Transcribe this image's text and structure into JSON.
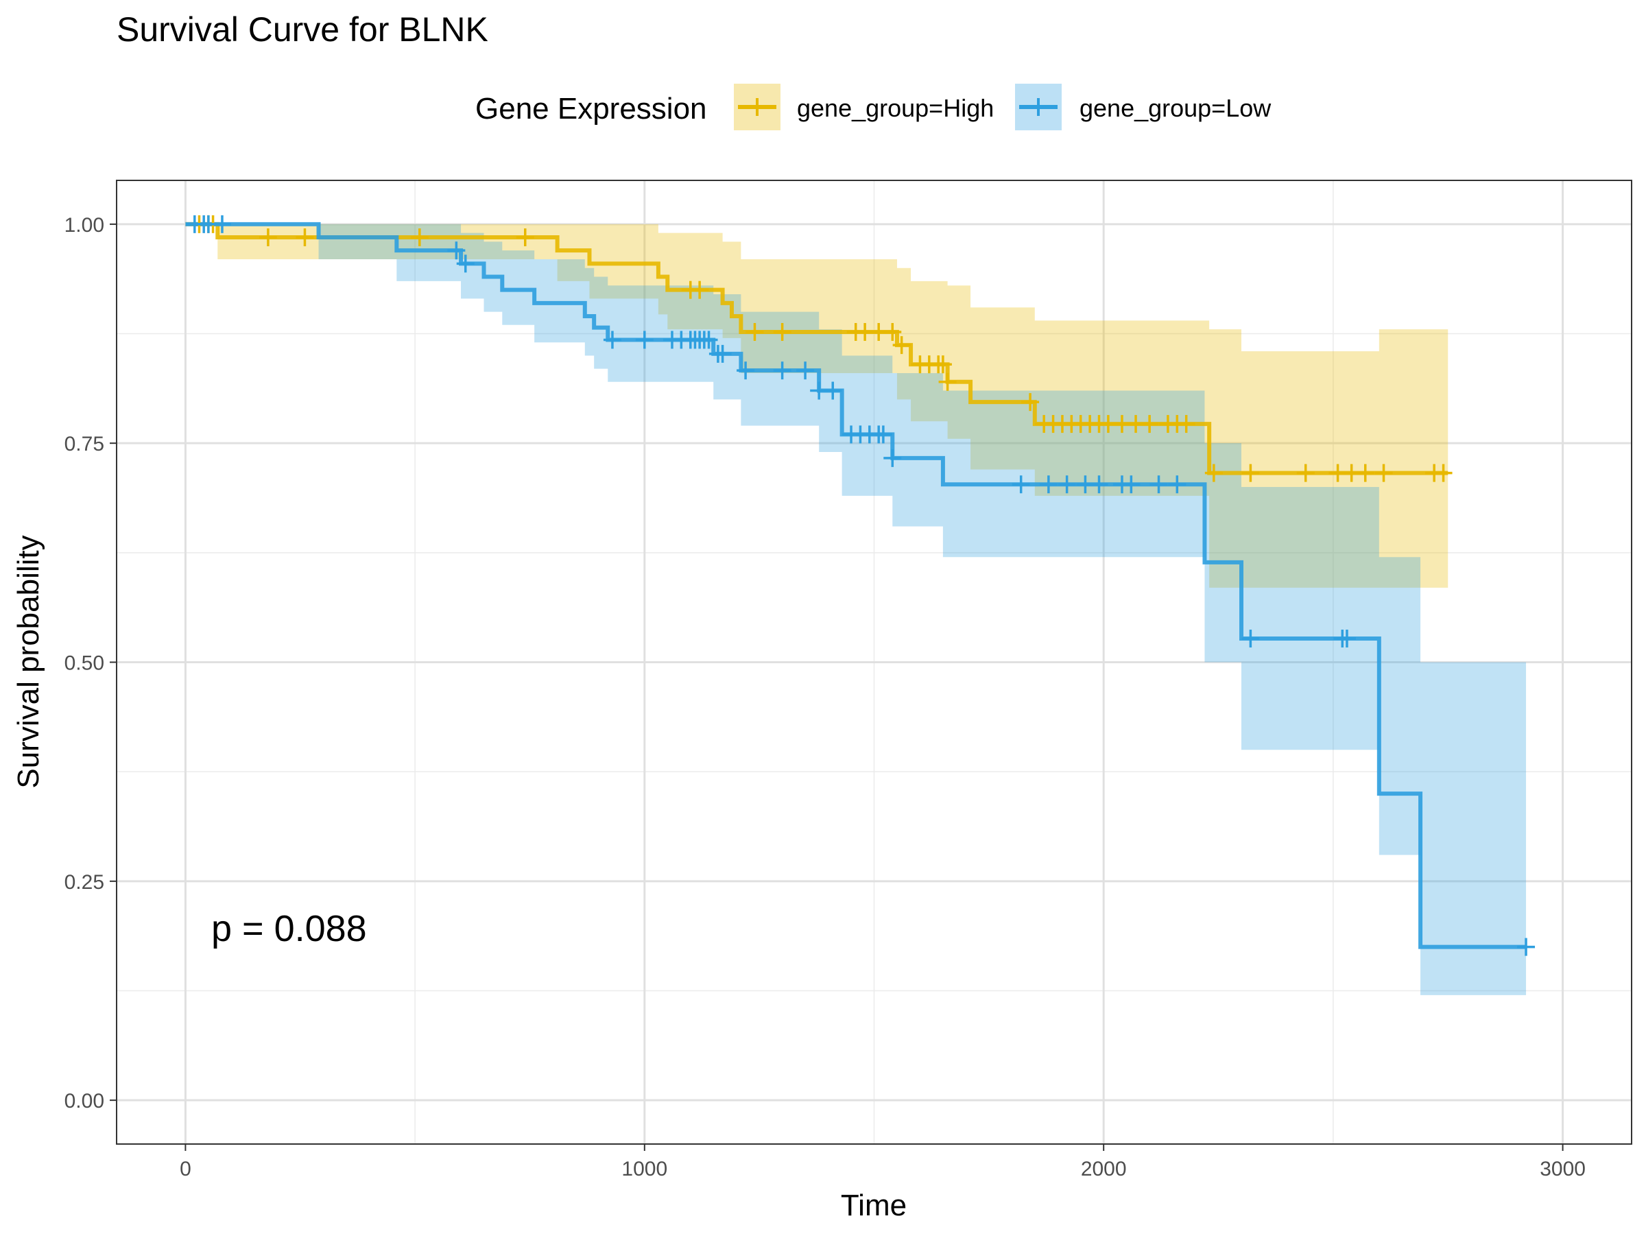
{
  "chart_data": {
    "type": "line",
    "title": "Survival Curve for BLNK",
    "xlabel": "Time",
    "ylabel": "Survival probability",
    "xlim": [
      -150,
      3150
    ],
    "ylim": [
      -0.05,
      1.05
    ],
    "x_ticks": [
      0,
      1000,
      2000,
      3000
    ],
    "x_tick_labels": [
      "0",
      "1000",
      "2000",
      "3000"
    ],
    "y_ticks": [
      0,
      0.25,
      0.5,
      0.75,
      1.0
    ],
    "y_tick_labels": [
      "0.00",
      "0.25",
      "0.50",
      "0.75",
      "1.00"
    ],
    "grid": true,
    "legend": {
      "title": "Gene Expression",
      "position": "top"
    },
    "annotation": "p = 0.088",
    "series": [
      {
        "name": "gene_group=High",
        "color": "#E7B800",
        "steps": [
          [
            0,
            1.0
          ],
          [
            70,
            0.985
          ],
          [
            810,
            0.97
          ],
          [
            880,
            0.955
          ],
          [
            1030,
            0.94
          ],
          [
            1050,
            0.925
          ],
          [
            1170,
            0.91
          ],
          [
            1190,
            0.895
          ],
          [
            1210,
            0.877
          ],
          [
            1550,
            0.862
          ],
          [
            1580,
            0.84
          ],
          [
            1660,
            0.82
          ],
          [
            1710,
            0.797
          ],
          [
            1850,
            0.772
          ],
          [
            2230,
            0.716
          ],
          [
            2750,
            0.716
          ]
        ],
        "ci_steps": [
          [
            0,
            1.0,
            1.0
          ],
          [
            70,
            1.0,
            0.96
          ],
          [
            290,
            1.0,
            0.96
          ],
          [
            810,
            1.0,
            0.935
          ],
          [
            880,
            1.0,
            0.915
          ],
          [
            1030,
            0.99,
            0.897
          ],
          [
            1050,
            0.99,
            0.88
          ],
          [
            1170,
            0.98,
            0.87
          ],
          [
            1210,
            0.96,
            0.83
          ],
          [
            1550,
            0.95,
            0.8
          ],
          [
            1580,
            0.935,
            0.775
          ],
          [
            1660,
            0.93,
            0.755
          ],
          [
            1710,
            0.905,
            0.72
          ],
          [
            1850,
            0.89,
            0.69
          ],
          [
            2230,
            0.88,
            0.585
          ],
          [
            2300,
            0.855,
            0.585
          ],
          [
            2600,
            0.88,
            0.585
          ],
          [
            2750,
            0.88,
            0.585
          ]
        ],
        "censor_times": [
          30,
          50,
          60,
          180,
          260,
          510,
          740,
          1100,
          1120,
          1240,
          1300,
          1460,
          1480,
          1510,
          1540,
          1560,
          1600,
          1620,
          1640,
          1650,
          1660,
          1840,
          1870,
          1890,
          1910,
          1930,
          1950,
          1970,
          1990,
          2010,
          2040,
          2070,
          2100,
          2140,
          2160,
          2180,
          2240,
          2320,
          2440,
          2510,
          2540,
          2570,
          2610,
          2720,
          2740
        ]
      },
      {
        "name": "gene_group=Low",
        "color": "#2E9FDF",
        "steps": [
          [
            0,
            1.0
          ],
          [
            290,
            0.985
          ],
          [
            460,
            0.97
          ],
          [
            600,
            0.955
          ],
          [
            650,
            0.94
          ],
          [
            690,
            0.925
          ],
          [
            760,
            0.91
          ],
          [
            870,
            0.895
          ],
          [
            890,
            0.882
          ],
          [
            920,
            0.868
          ],
          [
            1150,
            0.852
          ],
          [
            1210,
            0.833
          ],
          [
            1380,
            0.81
          ],
          [
            1430,
            0.76
          ],
          [
            1540,
            0.733
          ],
          [
            1650,
            0.703
          ],
          [
            2220,
            0.614
          ],
          [
            2300,
            0.527
          ],
          [
            2600,
            0.35
          ],
          [
            2690,
            0.175
          ],
          [
            2920,
            0.175
          ]
        ],
        "ci_steps": [
          [
            0,
            1.0,
            1.0
          ],
          [
            290,
            1.0,
            0.96
          ],
          [
            460,
            1.0,
            0.935
          ],
          [
            600,
            0.99,
            0.915
          ],
          [
            650,
            0.98,
            0.9
          ],
          [
            690,
            0.97,
            0.885
          ],
          [
            760,
            0.96,
            0.865
          ],
          [
            870,
            0.95,
            0.85
          ],
          [
            890,
            0.94,
            0.835
          ],
          [
            920,
            0.93,
            0.82
          ],
          [
            1150,
            0.92,
            0.8
          ],
          [
            1210,
            0.9,
            0.77
          ],
          [
            1380,
            0.88,
            0.74
          ],
          [
            1430,
            0.85,
            0.69
          ],
          [
            1540,
            0.83,
            0.655
          ],
          [
            1650,
            0.81,
            0.62
          ],
          [
            2220,
            0.75,
            0.5
          ],
          [
            2300,
            0.7,
            0.4
          ],
          [
            2600,
            0.62,
            0.28
          ],
          [
            2690,
            0.5,
            0.12
          ],
          [
            2920,
            0.5,
            0.12
          ]
        ],
        "censor_times": [
          20,
          40,
          50,
          80,
          590,
          610,
          930,
          1000,
          1060,
          1080,
          1100,
          1110,
          1120,
          1130,
          1140,
          1160,
          1170,
          1220,
          1300,
          1350,
          1380,
          1410,
          1450,
          1470,
          1490,
          1510,
          1520,
          1540,
          1820,
          1880,
          1920,
          1960,
          1990,
          2040,
          2060,
          2120,
          2160,
          2320,
          2520,
          2530,
          2920
        ]
      }
    ]
  }
}
